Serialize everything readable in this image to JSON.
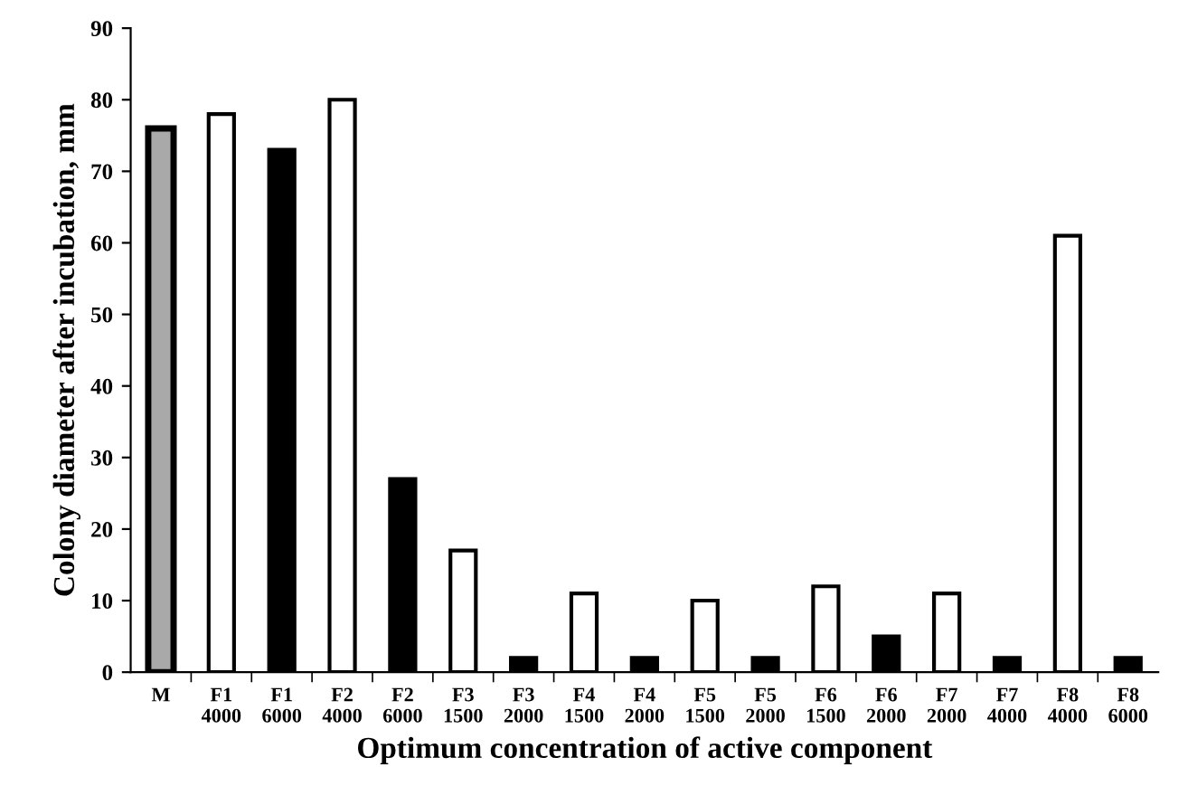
{
  "chart_data": {
    "type": "bar",
    "xlabel": "Optimum concentration of active component",
    "ylabel": "Colony diameter after incubation, mm",
    "categories": [
      "M",
      "F1\n4000",
      "F1\n6000",
      "F2\n4000",
      "F2\n6000",
      "F3\n1500",
      "F3\n2000",
      "F4\n1500",
      "F4\n2000",
      "F5\n1500",
      "F5\n2000",
      "F6\n1500",
      "F6\n2000",
      "F7\n2000",
      "F7\n4000",
      "F8\n4000",
      "F8\n6000"
    ],
    "values": [
      76,
      78,
      73,
      80,
      27,
      17,
      2,
      11,
      2,
      10,
      2,
      12,
      5,
      11,
      2,
      61,
      2
    ],
    "colors": [
      "#a9a9a9",
      "#ffffff",
      "#000000",
      "#ffffff",
      "#000000",
      "#ffffff",
      "#000000",
      "#ffffff",
      "#000000",
      "#ffffff",
      "#000000",
      "#ffffff",
      "#000000",
      "#ffffff",
      "#000000",
      "#ffffff",
      "#000000"
    ],
    "ylim": [
      0,
      90
    ],
    "yticks": [
      0,
      10,
      20,
      30,
      40,
      50,
      60,
      70,
      80,
      90
    ],
    "grid": false,
    "legend": false
  }
}
